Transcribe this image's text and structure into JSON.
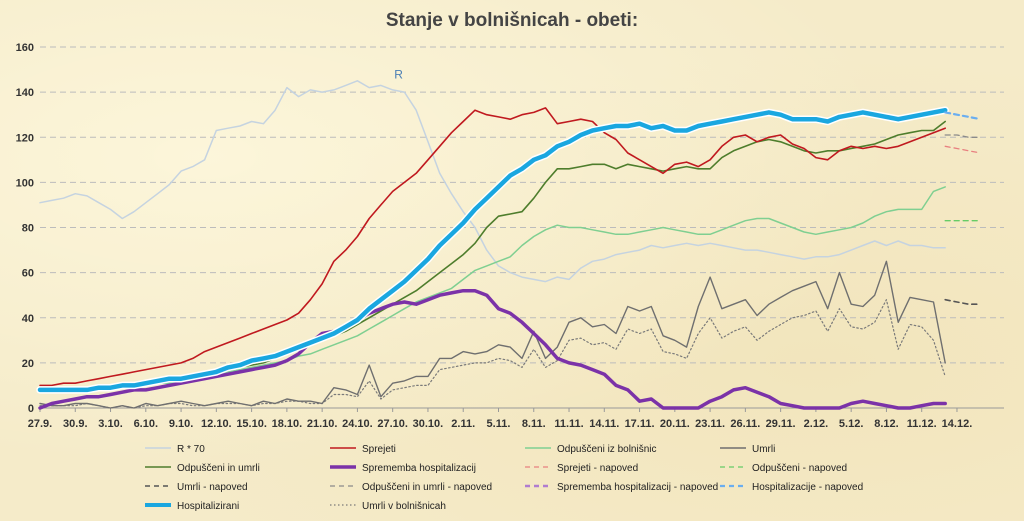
{
  "chart_data": {
    "type": "line",
    "title": "Stanje v bolnišnicah - obeti:",
    "xlabel": "",
    "ylabel": "",
    "ylim": [
      0,
      160
    ],
    "yticks": [
      0,
      20,
      40,
      60,
      80,
      100,
      120,
      140,
      160
    ],
    "xticks": [
      "27.9.",
      "30.9.",
      "3.10.",
      "6.10.",
      "9.10.",
      "12.10.",
      "15.10.",
      "18.10.",
      "21.10.",
      "24.10.",
      "27.10.",
      "30.10.",
      "2.11.",
      "5.11.",
      "8.11.",
      "11.11.",
      "14.11.",
      "17.11.",
      "20.11.",
      "23.11.",
      "26.11.",
      "29.11.",
      "2.12.",
      "5.12.",
      "8.12.",
      "11.12.",
      "14.12."
    ],
    "x_domain_days": [
      0,
      78
    ],
    "grid": true,
    "legend_position": "bottom",
    "annotation": {
      "text": "R",
      "x": 30.5,
      "y": 146
    },
    "series": [
      {
        "name": "R * 70",
        "color": "#c5d3e0",
        "width": 1.5,
        "dash": "",
        "x_start": 0,
        "values": [
          91,
          92,
          93,
          95,
          94,
          91,
          88,
          84,
          87,
          91,
          95,
          99,
          105,
          107,
          110,
          123,
          124,
          125,
          127,
          126,
          132,
          142,
          138,
          141,
          140,
          141,
          143,
          145,
          142,
          143,
          141,
          140,
          132,
          118,
          104,
          95,
          87,
          80,
          70,
          63,
          60,
          58,
          57,
          56,
          58,
          57,
          62,
          65,
          66,
          68,
          69,
          70,
          72,
          71,
          72,
          73,
          72,
          73,
          72,
          71,
          70,
          70,
          69,
          68,
          67,
          66,
          67,
          67,
          68,
          70,
          72,
          74,
          72,
          74,
          72,
          72,
          71,
          71
        ]
      },
      {
        "name": "Sprejeti",
        "color": "#c0191f",
        "width": 1.6,
        "dash": "",
        "x_start": 0,
        "values": [
          10,
          10,
          11,
          11,
          12,
          13,
          14,
          15,
          16,
          17,
          18,
          19,
          20,
          22,
          25,
          27,
          29,
          31,
          33,
          35,
          37,
          39,
          42,
          48,
          55,
          65,
          70,
          76,
          84,
          90,
          96,
          100,
          104,
          110,
          116,
          122,
          127,
          132,
          130,
          129,
          128,
          130,
          131,
          133,
          126,
          127,
          128,
          127,
          122,
          119,
          113,
          110,
          107,
          104,
          108,
          109,
          107,
          110,
          116,
          120,
          121,
          118,
          120,
          121,
          117,
          115,
          111,
          110,
          114,
          116,
          115,
          116,
          115,
          116,
          118,
          120,
          122,
          124
        ]
      },
      {
        "name": "Odpuščeni iz bolnišnic",
        "color": "#7fcf91",
        "width": 1.5,
        "dash": "",
        "x_start": 0,
        "values": [
          9,
          9,
          9,
          8,
          8,
          9,
          9,
          9,
          10,
          10,
          11,
          11,
          12,
          13,
          14,
          15,
          16,
          17,
          18,
          19,
          20,
          21,
          23,
          24,
          26,
          28,
          30,
          32,
          35,
          38,
          41,
          44,
          47,
          49,
          51,
          53,
          57,
          61,
          63,
          65,
          67,
          72,
          76,
          79,
          81,
          80,
          80,
          79,
          78,
          77,
          77,
          78,
          79,
          80,
          79,
          78,
          77,
          77,
          79,
          81,
          83,
          84,
          84,
          82,
          80,
          78,
          77,
          78,
          79,
          80,
          82,
          85,
          87,
          88,
          88,
          88,
          96,
          98
        ]
      },
      {
        "name": "Umrli",
        "color": "#6f6f6f",
        "width": 1.4,
        "dash": "",
        "x_start": 0,
        "values": [
          2,
          1,
          1,
          2,
          2,
          1,
          0,
          1,
          0,
          2,
          1,
          2,
          3,
          2,
          1,
          2,
          3,
          2,
          1,
          3,
          2,
          4,
          3,
          3,
          2,
          9,
          8,
          6,
          19,
          5,
          11,
          12,
          14,
          14,
          22,
          22,
          25,
          24,
          25,
          28,
          27,
          22,
          34,
          22,
          27,
          38,
          40,
          36,
          37,
          33,
          45,
          43,
          45,
          32,
          30,
          27,
          45,
          58,
          44,
          46,
          48,
          41,
          46,
          49,
          52,
          54,
          56,
          44,
          60,
          46,
          45,
          50,
          65,
          38,
          49,
          48,
          47,
          20
        ]
      },
      {
        "name": "Odpuščeni in umrli",
        "color": "#4e7d2c",
        "width": 1.6,
        "dash": "",
        "x_start": 0,
        "values": [
          9,
          9,
          9,
          9,
          9,
          10,
          10,
          11,
          11,
          12,
          12,
          13,
          13,
          14,
          15,
          16,
          17,
          18,
          19,
          20,
          22,
          24,
          26,
          28,
          30,
          32,
          34,
          37,
          40,
          43,
          46,
          49,
          52,
          56,
          60,
          64,
          68,
          73,
          80,
          85,
          86,
          87,
          93,
          100,
          106,
          106,
          107,
          108,
          108,
          106,
          108,
          107,
          106,
          105,
          106,
          107,
          106,
          106,
          111,
          114,
          116,
          118,
          119,
          118,
          116,
          114,
          113,
          114,
          114,
          115,
          116,
          117,
          119,
          121,
          122,
          123,
          123,
          127
        ]
      },
      {
        "name": "Sprememba hospitalizacij",
        "color": "#7b32a8",
        "width": 3.5,
        "dash": "",
        "x_start": 0,
        "values": [
          0,
          2,
          3,
          4,
          5,
          5,
          6,
          7,
          8,
          8,
          9,
          10,
          11,
          12,
          13,
          14,
          15,
          16,
          17,
          18,
          19,
          21,
          24,
          29,
          33,
          34,
          35,
          39,
          42,
          44,
          46,
          47,
          46,
          48,
          50,
          51,
          52,
          52,
          50,
          44,
          42,
          38,
          33,
          28,
          22,
          20,
          19,
          17,
          15,
          10,
          8,
          3,
          4,
          0,
          0,
          0,
          0,
          3,
          5,
          8,
          9,
          7,
          5,
          2,
          1,
          0,
          0,
          0,
          0,
          2,
          3,
          2,
          1,
          0,
          0,
          1,
          2,
          2
        ]
      },
      {
        "name": "Umrli v bolnišnicah",
        "color": "#7a7a7a",
        "width": 1.2,
        "dash": "1.5 2.5",
        "x_start": 0,
        "values": [
          1,
          1,
          1,
          1,
          2,
          1,
          0,
          1,
          0,
          1,
          1,
          2,
          2,
          1,
          1,
          2,
          2,
          2,
          1,
          2,
          2,
          3,
          3,
          2,
          2,
          6,
          6,
          5,
          12,
          4,
          8,
          9,
          10,
          10,
          17,
          18,
          19,
          20,
          20,
          22,
          21,
          18,
          26,
          18,
          21,
          30,
          31,
          28,
          29,
          26,
          35,
          33,
          35,
          25,
          24,
          22,
          33,
          40,
          31,
          34,
          36,
          30,
          34,
          37,
          40,
          41,
          43,
          34,
          44,
          36,
          35,
          38,
          48,
          26,
          37,
          36,
          30,
          14
        ]
      },
      {
        "name": "Hospitalizirani",
        "color": "#1aa7e0",
        "width": 4.5,
        "dash": "",
        "x_start": 0,
        "values": [
          8,
          8,
          8,
          8,
          8,
          9,
          9,
          10,
          10,
          11,
          12,
          13,
          13,
          14,
          15,
          16,
          18,
          19,
          21,
          22,
          23,
          25,
          27,
          29,
          31,
          33,
          36,
          39,
          44,
          48,
          52,
          56,
          61,
          66,
          72,
          77,
          82,
          88,
          93,
          98,
          103,
          106,
          110,
          112,
          116,
          118,
          121,
          123,
          124,
          125,
          125,
          126,
          124,
          125,
          123,
          123,
          125,
          126,
          127,
          128,
          129,
          130,
          131,
          130,
          128,
          128,
          128,
          127,
          129,
          130,
          131,
          130,
          129,
          128,
          129,
          130,
          131,
          132
        ]
      },
      {
        "name": "Sprejeti - napoved",
        "color": "#e88080",
        "width": 1.3,
        "dash": "5 4",
        "x_start": 77,
        "values": [
          116,
          115,
          114,
          113
        ]
      },
      {
        "name": "Odpuščeni - napoved",
        "color": "#66cc66",
        "width": 1.3,
        "dash": "5 4",
        "x_start": 77,
        "values": [
          83,
          83,
          83,
          83
        ]
      },
      {
        "name": "Umrli - napoved",
        "color": "#555555",
        "width": 1.6,
        "dash": "5 4",
        "x_start": 77,
        "values": [
          48,
          47,
          46,
          46
        ]
      },
      {
        "name": "Odpuščeni in umrli - napoved",
        "color": "#8a8a8a",
        "width": 1.3,
        "dash": "5 4",
        "x_start": 77,
        "values": [
          121,
          121,
          120,
          120
        ]
      },
      {
        "name": "Sprememba hospitalizacij - napoved",
        "color": "#b07cd0",
        "width": 2.5,
        "dash": "5 4",
        "x_start": 77,
        "values": []
      },
      {
        "name": "Hospitalizacije - napoved",
        "color": "#6aaef0",
        "width": 2.2,
        "dash": "5 4",
        "x_start": 77,
        "values": [
          131,
          130,
          129,
          128
        ]
      }
    ]
  },
  "legend_order": [
    "R * 70",
    "Sprejeti",
    "Odpuščeni iz bolnišnic",
    "Umrli",
    "Odpuščeni in umrli",
    "Sprememba hospitalizacij",
    "Sprejeti - napoved",
    "Odpuščeni - napoved",
    "Umrli - napoved",
    "Odpuščeni in umrli - napoved",
    "Sprememba hospitalizacij - napoved",
    "Hospitalizacije - napoved",
    "Hospitalizirani",
    "Umrli v bolnišnicah"
  ]
}
